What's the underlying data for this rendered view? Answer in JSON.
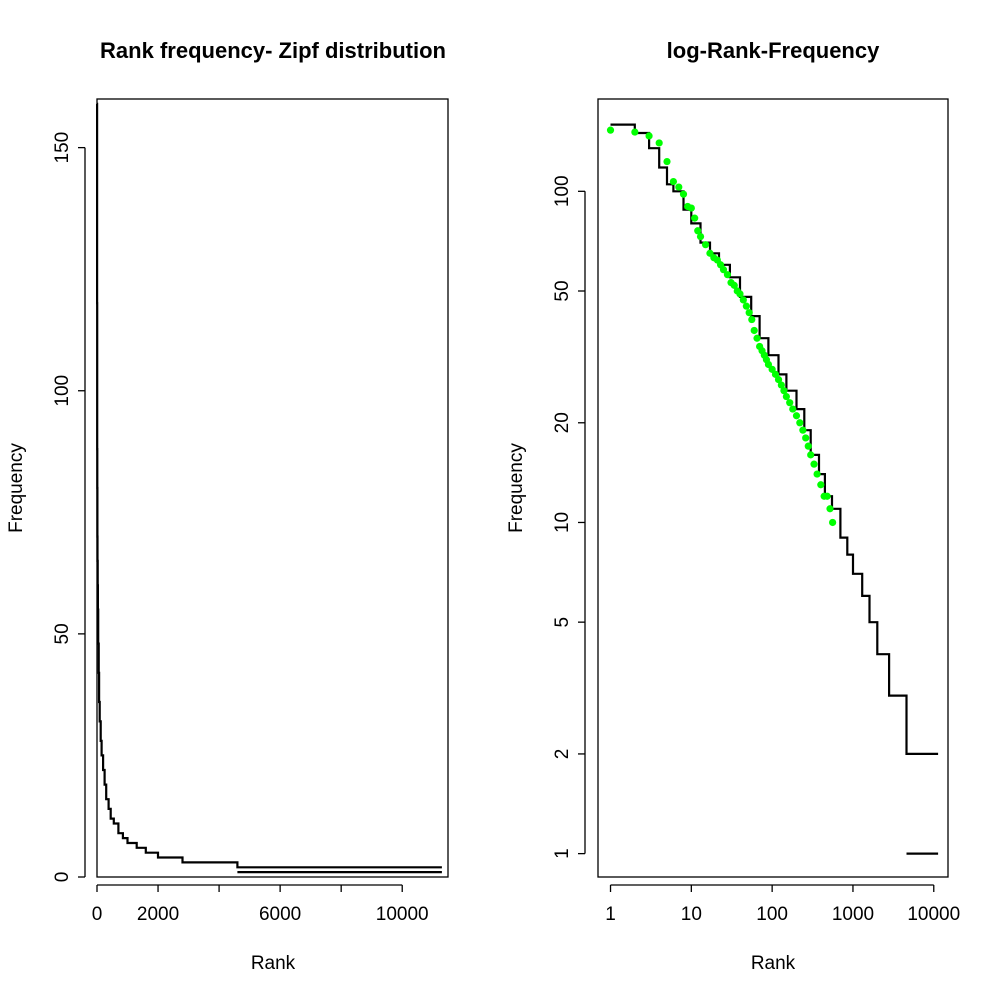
{
  "chart_data": [
    {
      "type": "line",
      "step": true,
      "title": "Rank frequency- Zipf distribution",
      "xlabel": "Rank",
      "ylabel": "Frequency",
      "xlim": [
        0,
        11500
      ],
      "ylim": [
        0,
        160
      ],
      "x_scale": "linear",
      "y_scale": "linear",
      "xticks": [
        0,
        2000,
        6000,
        10000
      ],
      "xticks_minor": [
        4000,
        8000
      ],
      "yticks": [
        0,
        50,
        100,
        150
      ],
      "grid": false,
      "line_color": "#000000",
      "series": [
        {
          "x": [
            1,
            2,
            3,
            4,
            5,
            6,
            8,
            10,
            13,
            17,
            22,
            30,
            40,
            55,
            70,
            90,
            120,
            150,
            200,
            250,
            300,
            380,
            450,
            550,
            700,
            850,
            1000,
            1300,
            1600,
            2000,
            2800,
            4600,
            11300
          ],
          "y": [
            159,
            158,
            150,
            135,
            118,
            105,
            100,
            88,
            80,
            70,
            65,
            60,
            55,
            48,
            42,
            36,
            32,
            28,
            25,
            22,
            19,
            16,
            14,
            12,
            11,
            9,
            8,
            7,
            6,
            5,
            4,
            3,
            2
          ]
        }
      ]
    },
    {
      "type": "line",
      "step": true,
      "title": "log-Rank-Frequency",
      "xlabel": "Rank",
      "ylabel": "Frequency",
      "x_scale": "log",
      "y_scale": "log",
      "xlim": [
        0.7,
        15000
      ],
      "ylim": [
        0.85,
        190
      ],
      "xticks": [
        1,
        10,
        100,
        1000,
        10000
      ],
      "xtick_labels": [
        "1",
        "10",
        "100",
        "1000",
        "10000"
      ],
      "yticks": [
        1,
        2,
        5,
        10,
        20,
        50,
        100
      ],
      "ytick_labels": [
        "1",
        "2",
        "5",
        "10",
        "20",
        "50",
        "100"
      ],
      "grid": false,
      "line_color": "#000000",
      "point_color": "#00ff00",
      "series": [
        {
          "x": [
            1,
            2,
            3,
            4,
            5,
            6,
            8,
            10,
            13,
            17,
            22,
            30,
            40,
            55,
            70,
            90,
            120,
            150,
            200,
            250,
            300,
            380,
            450,
            550,
            700,
            850,
            1000,
            1300,
            1600,
            2000,
            2800,
            4600,
            11300
          ],
          "y": [
            159,
            158,
            150,
            135,
            118,
            105,
            100,
            88,
            80,
            70,
            65,
            60,
            55,
            48,
            42,
            36,
            32,
            28,
            25,
            22,
            19,
            16,
            14,
            12,
            11,
            9,
            8,
            7,
            6,
            5,
            4,
            3,
            2
          ]
        }
      ],
      "points": {
        "x": [
          1,
          2,
          3,
          4,
          5,
          6,
          7,
          8,
          9,
          10,
          11,
          12,
          13,
          15,
          17,
          19,
          21,
          23,
          25,
          28,
          31,
          34,
          37,
          40,
          44,
          48,
          52,
          56,
          60,
          65,
          70,
          75,
          80,
          85,
          90,
          100,
          110,
          120,
          130,
          140,
          150,
          165,
          180,
          200,
          220,
          240,
          260,
          280,
          300,
          330,
          360,
          400,
          440,
          480,
          520,
          560
        ],
        "y": [
          153,
          151,
          147,
          140,
          123,
          107,
          103,
          98,
          90,
          89,
          83,
          76,
          73,
          69,
          65,
          63,
          62,
          60,
          58,
          56,
          53,
          52,
          50,
          49,
          47,
          45,
          43,
          41,
          38,
          36,
          34,
          33,
          32,
          31,
          30,
          29,
          28,
          27,
          26,
          25,
          24,
          23,
          22,
          21,
          20,
          19,
          18,
          17,
          16,
          15,
          14,
          13,
          12,
          12,
          11,
          10
        ]
      }
    }
  ]
}
